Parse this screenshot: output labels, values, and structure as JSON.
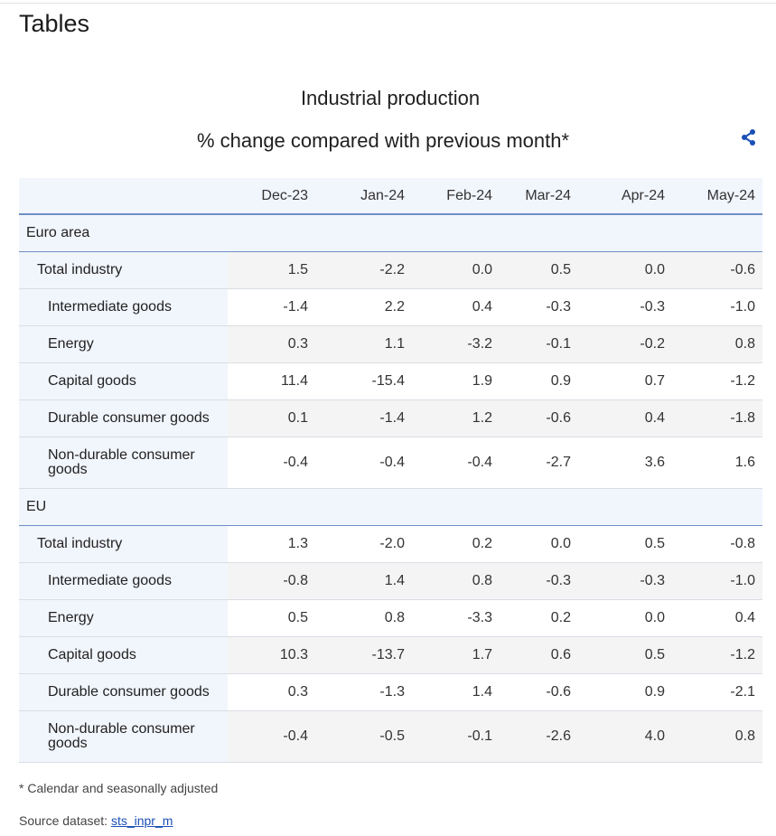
{
  "page": {
    "title": "Tables"
  },
  "table": {
    "title": "Industrial production",
    "subtitle": "% change compared with previous month*",
    "share_icon": "share-icon",
    "columns": [
      "Dec-23",
      "Jan-24",
      "Feb-24",
      "Mar-24",
      "Apr-24",
      "May-24"
    ],
    "groups": [
      {
        "name": "Euro area",
        "rows": [
          {
            "label": "Total industry",
            "level": 1,
            "values": [
              "1.5",
              "-2.2",
              "0.0",
              "0.5",
              "0.0",
              "-0.6"
            ]
          },
          {
            "label": "Intermediate goods",
            "level": 2,
            "values": [
              "-1.4",
              "2.2",
              "0.4",
              "-0.3",
              "-0.3",
              "-1.0"
            ]
          },
          {
            "label": "Energy",
            "level": 2,
            "values": [
              "0.3",
              "1.1",
              "-3.2",
              "-0.1",
              "-0.2",
              "0.8"
            ]
          },
          {
            "label": "Capital goods",
            "level": 2,
            "values": [
              "11.4",
              "-15.4",
              "1.9",
              "0.9",
              "0.7",
              "-1.2"
            ]
          },
          {
            "label": "Durable consumer goods",
            "level": 2,
            "values": [
              "0.1",
              "-1.4",
              "1.2",
              "-0.6",
              "0.4",
              "-1.8"
            ]
          },
          {
            "label": "Non-durable consumer goods",
            "level": 2,
            "values": [
              "-0.4",
              "-0.4",
              "-0.4",
              "-2.7",
              "3.6",
              "1.6"
            ]
          }
        ]
      },
      {
        "name": "EU",
        "rows": [
          {
            "label": "Total industry",
            "level": 1,
            "values": [
              "1.3",
              "-2.0",
              "0.2",
              "0.0",
              "0.5",
              "-0.8"
            ]
          },
          {
            "label": "Intermediate goods",
            "level": 2,
            "values": [
              "-0.8",
              "1.4",
              "0.8",
              "-0.3",
              "-0.3",
              "-1.0"
            ]
          },
          {
            "label": "Energy",
            "level": 2,
            "values": [
              "0.5",
              "0.8",
              "-3.3",
              "0.2",
              "0.0",
              "0.4"
            ]
          },
          {
            "label": "Capital goods",
            "level": 2,
            "values": [
              "10.3",
              "-13.7",
              "1.7",
              "0.6",
              "0.5",
              "-1.2"
            ]
          },
          {
            "label": "Durable consumer goods",
            "level": 2,
            "values": [
              "0.3",
              "-1.3",
              "1.4",
              "-0.6",
              "0.9",
              "-2.1"
            ]
          },
          {
            "label": "Non-durable consumer goods",
            "level": 2,
            "values": [
              "-0.4",
              "-0.5",
              "-0.1",
              "-2.6",
              "4.0",
              "0.8"
            ]
          }
        ]
      }
    ]
  },
  "footer": {
    "footnote": "*  Calendar and seasonally adjusted",
    "source_label": "Source dataset: ",
    "source_link": "sts_inpr_m"
  },
  "colors": {
    "accent": "#1a4fb5",
    "header_bg": "#f1f5fc",
    "stripe": "#f4f4f4",
    "rule": "#6e8fc4"
  }
}
